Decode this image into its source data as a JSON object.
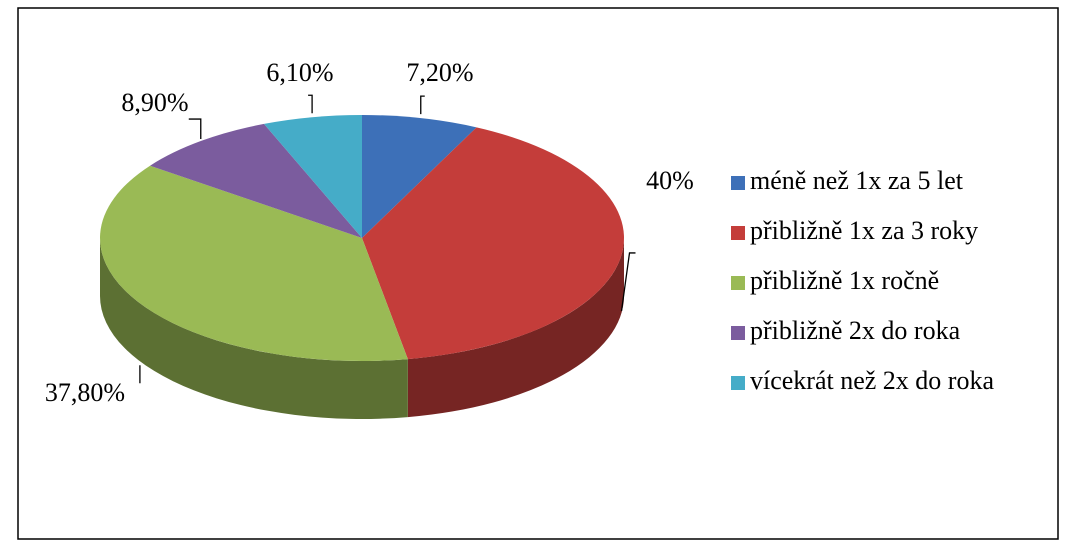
{
  "chart_data": {
    "type": "pie3d",
    "categories": [
      "méně než 1x za 5 let",
      "přibližně 1x za 3 roky",
      "přibližně 1x ročně",
      "přibližně 2x do roka",
      "vícekrát než 2x do roka"
    ],
    "values": [
      7.2,
      40,
      37.8,
      8.9,
      6.1
    ],
    "value_labels": [
      "7,20%",
      "40%",
      "37,80%",
      "8,90%",
      "6,10%"
    ],
    "colors": [
      "#3d70b8",
      "#c43d3a",
      "#9aba55",
      "#7b5c9e",
      "#45acc8"
    ],
    "legend": "right"
  }
}
